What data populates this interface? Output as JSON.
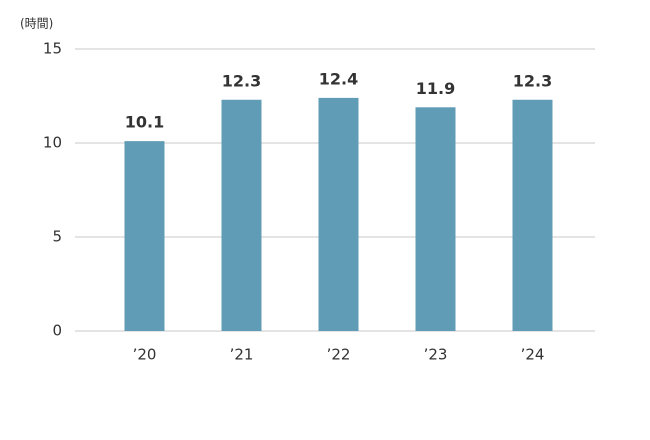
{
  "chart_data": {
    "type": "bar",
    "y_axis_label": "(時間)",
    "categories": [
      "’20",
      "’21",
      "’22",
      "’23",
      "’24"
    ],
    "values": [
      10.1,
      12.3,
      12.4,
      11.9,
      12.3
    ],
    "color": "#619cb6",
    "ylim": [
      0,
      15
    ],
    "yticks": [
      0,
      5,
      10,
      15
    ],
    "grid": true
  }
}
